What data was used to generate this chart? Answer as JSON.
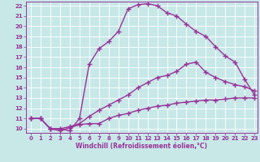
{
  "xlabel": "Windchill (Refroidissement éolien,°C)",
  "xlim": [
    -0.5,
    23.3
  ],
  "ylim": [
    9.6,
    22.4
  ],
  "yticks": [
    10,
    11,
    12,
    13,
    14,
    15,
    16,
    17,
    18,
    19,
    20,
    21,
    22
  ],
  "xticks": [
    0,
    1,
    2,
    3,
    4,
    5,
    6,
    7,
    8,
    9,
    10,
    11,
    12,
    13,
    14,
    15,
    16,
    17,
    18,
    19,
    20,
    21,
    22,
    23
  ],
  "bg_color": "#c8e8e8",
  "grid_color": "#ffffff",
  "line_color": "#993399",
  "line1_x": [
    0,
    1,
    2,
    3,
    4,
    5,
    6,
    7,
    8,
    9,
    10,
    11,
    12,
    13,
    14,
    15,
    16,
    17,
    18,
    19,
    20,
    21,
    22,
    23
  ],
  "line1_y": [
    11,
    11,
    10,
    9.8,
    10.1,
    10.4,
    10.5,
    10.5,
    11.0,
    11.3,
    11.5,
    11.8,
    12.0,
    12.2,
    12.3,
    12.5,
    12.6,
    12.7,
    12.8,
    12.8,
    12.9,
    13.0,
    13.0,
    13.0
  ],
  "line2_x": [
    0,
    1,
    2,
    3,
    4,
    5,
    6,
    7,
    8,
    9,
    10,
    11,
    12,
    13,
    14,
    15,
    16,
    17,
    18,
    19,
    20,
    21,
    22,
    23
  ],
  "line2_y": [
    11,
    11,
    10,
    10,
    10.2,
    10.5,
    11.2,
    11.8,
    12.3,
    12.8,
    13.3,
    14.0,
    14.5,
    15.0,
    15.2,
    15.6,
    16.3,
    16.5,
    15.5,
    15.0,
    14.6,
    14.3,
    14.1,
    13.7
  ],
  "line3_x": [
    0,
    1,
    2,
    3,
    4,
    5,
    6,
    7,
    8,
    9,
    10,
    11,
    12,
    13,
    14,
    15,
    16,
    17,
    18,
    19,
    20,
    21,
    22,
    23
  ],
  "line3_y": [
    11,
    11,
    10,
    10,
    9.8,
    11.0,
    16.3,
    17.8,
    18.5,
    19.5,
    21.7,
    22.1,
    22.2,
    22.0,
    21.3,
    21.0,
    20.2,
    19.5,
    19.0,
    18.0,
    17.1,
    16.5,
    14.8,
    13.3
  ],
  "marker": "+",
  "markersize": 4,
  "linewidth": 1.0
}
